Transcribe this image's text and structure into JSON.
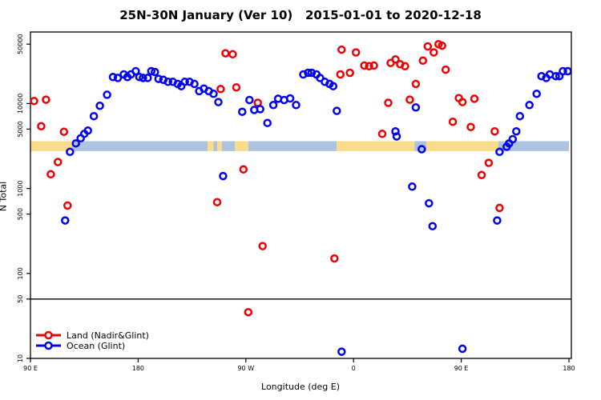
{
  "title": "25N-30N January (Ver 10)   2015-01-01 to 2020-12-18",
  "chart_data": {
    "type": "scatter",
    "title": "25N-30N January (Ver 10)   2015-01-01 to 2020-12-18",
    "xlabel": "Longitude (deg E)",
    "ylabel": "N Total",
    "x_axis": {
      "range_deg": [
        90,
        540
      ],
      "ticks": [
        {
          "label": "90 E",
          "deg": 90
        },
        {
          "label": "180",
          "deg": 180
        },
        {
          "label": "90 W",
          "deg": 270
        },
        {
          "label": "0",
          "deg": 360
        },
        {
          "label": "90 E",
          "deg": 450
        },
        {
          "label": "180",
          "deg": 540
        }
      ]
    },
    "y_axis": {
      "scale": "log",
      "range": [
        10,
        69000
      ],
      "ticks": [
        50000,
        10000,
        5000,
        1000,
        500,
        100,
        50,
        10
      ]
    },
    "reference_line_y": 50,
    "grid": "off",
    "legend_position": "bottom-left",
    "surface_band": {
      "n_top": 3600,
      "n_bottom": 2750,
      "land_color": "#FBDC8A",
      "ocean_color": "#AEC3DF",
      "segments": [
        {
          "from": 90,
          "to": 125,
          "surface": "land"
        },
        {
          "from": 125,
          "to": 238,
          "surface": "ocean"
        },
        {
          "from": 238,
          "to": 243,
          "surface": "land"
        },
        {
          "from": 243,
          "to": 246,
          "surface": "ocean"
        },
        {
          "from": 246,
          "to": 250,
          "surface": "land"
        },
        {
          "from": 250,
          "to": 261,
          "surface": "ocean"
        },
        {
          "from": 261,
          "to": 272,
          "surface": "land"
        },
        {
          "from": 272,
          "to": 346,
          "surface": "ocean"
        },
        {
          "from": 346,
          "to": 411,
          "surface": "land"
        },
        {
          "from": 411,
          "to": 421,
          "surface": "ocean"
        },
        {
          "from": 421,
          "to": 481,
          "surface": "land"
        },
        {
          "from": 481,
          "to": 540,
          "surface": "ocean"
        }
      ]
    },
    "series": [
      {
        "name": "Land (Nadir&Glint)",
        "color": "#EE0000",
        "points": [
          [
            93,
            10700
          ],
          [
            103,
            11100
          ],
          [
            99,
            5400
          ],
          [
            118,
            4650
          ],
          [
            113,
            2050
          ],
          [
            107,
            1470
          ],
          [
            121,
            630
          ],
          [
            249,
            14800
          ],
          [
            262,
            15500
          ],
          [
            253,
            39000
          ],
          [
            259,
            38000
          ],
          [
            280,
            10200
          ],
          [
            268,
            1680
          ],
          [
            246,
            690
          ],
          [
            284,
            210
          ],
          [
            272,
            35
          ],
          [
            344,
            150
          ],
          [
            350,
            43000
          ],
          [
            362,
            40000
          ],
          [
            349,
            22000
          ],
          [
            357,
            23000
          ],
          [
            369,
            28000
          ],
          [
            373,
            27500
          ],
          [
            377,
            28000
          ],
          [
            391,
            30000
          ],
          [
            395,
            33000
          ],
          [
            399,
            29000
          ],
          [
            403,
            27500
          ],
          [
            412,
            17000
          ],
          [
            407,
            11100
          ],
          [
            389,
            10200
          ],
          [
            384,
            4400
          ],
          [
            418,
            32000
          ],
          [
            422,
            47000
          ],
          [
            427,
            40000
          ],
          [
            431,
            50000
          ],
          [
            434,
            48000
          ],
          [
            437,
            25000
          ],
          [
            443,
            6100
          ],
          [
            448,
            11600
          ],
          [
            451,
            10400
          ],
          [
            461,
            11400
          ],
          [
            458,
            5300
          ],
          [
            478,
            4700
          ],
          [
            473,
            2000
          ],
          [
            467,
            1440
          ],
          [
            482,
            590
          ]
        ]
      },
      {
        "name": "Ocean (Glint)",
        "color": "#0000EE",
        "points": [
          [
            119,
            420
          ],
          [
            123,
            2700
          ],
          [
            128,
            3400
          ],
          [
            132,
            3900
          ],
          [
            135,
            4400
          ],
          [
            138,
            4800
          ],
          [
            143,
            7100
          ],
          [
            148,
            9400
          ],
          [
            154,
            12700
          ],
          [
            159,
            20500
          ],
          [
            163,
            20000
          ],
          [
            168,
            22000
          ],
          [
            171,
            20500
          ],
          [
            174,
            22000
          ],
          [
            178,
            24000
          ],
          [
            181,
            20500
          ],
          [
            184,
            20000
          ],
          [
            188,
            20000
          ],
          [
            191,
            24000
          ],
          [
            194,
            23500
          ],
          [
            197,
            19500
          ],
          [
            201,
            19000
          ],
          [
            205,
            18000
          ],
          [
            209,
            18000
          ],
          [
            213,
            17000
          ],
          [
            216,
            16000
          ],
          [
            219,
            18000
          ],
          [
            223,
            18000
          ],
          [
            227,
            17000
          ],
          [
            231,
            14000
          ],
          [
            235,
            15000
          ],
          [
            239,
            14000
          ],
          [
            243,
            13000
          ],
          [
            247,
            10400
          ],
          [
            251,
            1400
          ],
          [
            267,
            8000
          ],
          [
            273,
            11000
          ],
          [
            277,
            8400
          ],
          [
            282,
            8600
          ],
          [
            288,
            5900
          ],
          [
            293,
            9600
          ],
          [
            297,
            11400
          ],
          [
            302,
            11000
          ],
          [
            307,
            11500
          ],
          [
            312,
            9600
          ],
          [
            318,
            22000
          ],
          [
            322,
            23000
          ],
          [
            325,
            23000
          ],
          [
            329,
            22000
          ],
          [
            332,
            20000
          ],
          [
            336,
            18000
          ],
          [
            340,
            17000
          ],
          [
            343,
            16000
          ],
          [
            346,
            8200
          ],
          [
            350,
            12
          ],
          [
            451,
            13
          ],
          [
            395,
            4700
          ],
          [
            396,
            4100
          ],
          [
            409,
            1050
          ],
          [
            412,
            9000
          ],
          [
            417,
            2900
          ],
          [
            423,
            670
          ],
          [
            426,
            360
          ],
          [
            480,
            420
          ],
          [
            482,
            2700
          ],
          [
            488,
            3100
          ],
          [
            490,
            3400
          ],
          [
            493,
            3800
          ],
          [
            496,
            4700
          ],
          [
            499,
            7100
          ],
          [
            507,
            9600
          ],
          [
            513,
            13000
          ],
          [
            517,
            21000
          ],
          [
            521,
            20000
          ],
          [
            524,
            22000
          ],
          [
            529,
            21000
          ],
          [
            532,
            21000
          ],
          [
            535,
            24000
          ],
          [
            539,
            24000
          ]
        ]
      }
    ]
  },
  "legend": {
    "items": [
      {
        "label": "Land (Nadir&Glint)",
        "color": "#EE0000"
      },
      {
        "label": "Ocean (Glint)",
        "color": "#0000EE"
      }
    ]
  }
}
